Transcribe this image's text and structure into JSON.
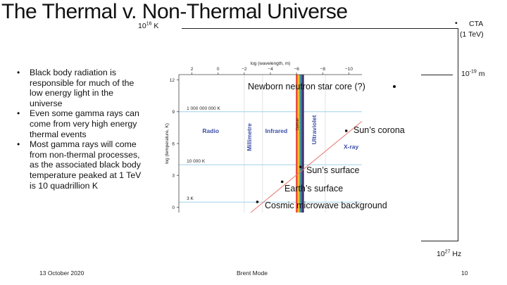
{
  "slide": {
    "title": "The Thermal v. Non-Thermal Universe",
    "bullets": [
      "Black body radiation is responsible for much of the low energy light in the universe",
      "Even some gamma rays can come from very high energy thermal events",
      "Most gamma rays will come from non-thermal processes, as the associated black body temperature peaked at 1 TeV is 10 quadrillion K"
    ],
    "footer": {
      "date": "13 October 2020",
      "author": "Brent Mode",
      "page": "10"
    }
  },
  "annotations": {
    "temp_base": "10",
    "temp_exp": "16",
    "temp_unit": " K",
    "cta_bullet": "•",
    "cta_line1": "CTA",
    "cta_line2": "(1 TeV)",
    "wave_base": "10",
    "wave_exp": "-19",
    "wave_unit": " m",
    "freq_base": "10",
    "freq_exp": "27",
    "freq_unit": " Hz",
    "neutron_star": "Newborn neutron star core (?)",
    "suns_corona": "Sun’s corona",
    "suns_surface": "Sun’s surface",
    "earths_surface": "Earth’s surface",
    "cmb": "Cosmic microwave background"
  },
  "chart_data": {
    "type": "scatter",
    "xlabel": "log (wavelength, m)",
    "ylabel": "log (temperature, K)",
    "x_ticks": [
      "2",
      "0",
      "−2",
      "−4",
      "−6",
      "−8",
      "−10"
    ],
    "y_ticks": [
      "0",
      "3",
      "6",
      "9",
      "12"
    ],
    "xlim": [
      3,
      -11
    ],
    "ylim": [
      -0.5,
      12.5
    ],
    "temperature_lines": [
      {
        "label": "1 000 000 000 K",
        "log_t": 9
      },
      {
        "label": "10 000 K",
        "log_t": 4
      },
      {
        "label": "3 K",
        "log_t": 0.48
      }
    ],
    "regions": [
      {
        "label": "Radio",
        "color": "#3d4fa8"
      },
      {
        "label": "Millimetre",
        "color": "#3d4fa8"
      },
      {
        "label": "Infrared",
        "color": "#3d4fa8"
      },
      {
        "label": "Optical",
        "color": "#222222"
      },
      {
        "label": "Ultraviolet",
        "color": "#3d4fa8"
      },
      {
        "label": "X-ray",
        "color": "#3d4fa8"
      }
    ],
    "points": [
      {
        "name": "Cosmic microwave background",
        "log_lambda": -3.0,
        "log_t": 0.5
      },
      {
        "name": "Earth’s surface",
        "log_lambda": -4.9,
        "log_t": 2.4
      },
      {
        "name": "Sun’s surface",
        "log_lambda": -6.3,
        "log_t": 3.8
      },
      {
        "name": "Sun’s corona",
        "log_lambda": -9.8,
        "log_t": 7.2
      }
    ],
    "wien_line": {
      "from": [
        -2.5,
        -0.5
      ],
      "to": [
        -11,
        8.1
      ]
    },
    "colors": {
      "temp_line": "#9fd2ea",
      "wien_line": "#e8776f",
      "label": "#3d4fa8"
    }
  }
}
